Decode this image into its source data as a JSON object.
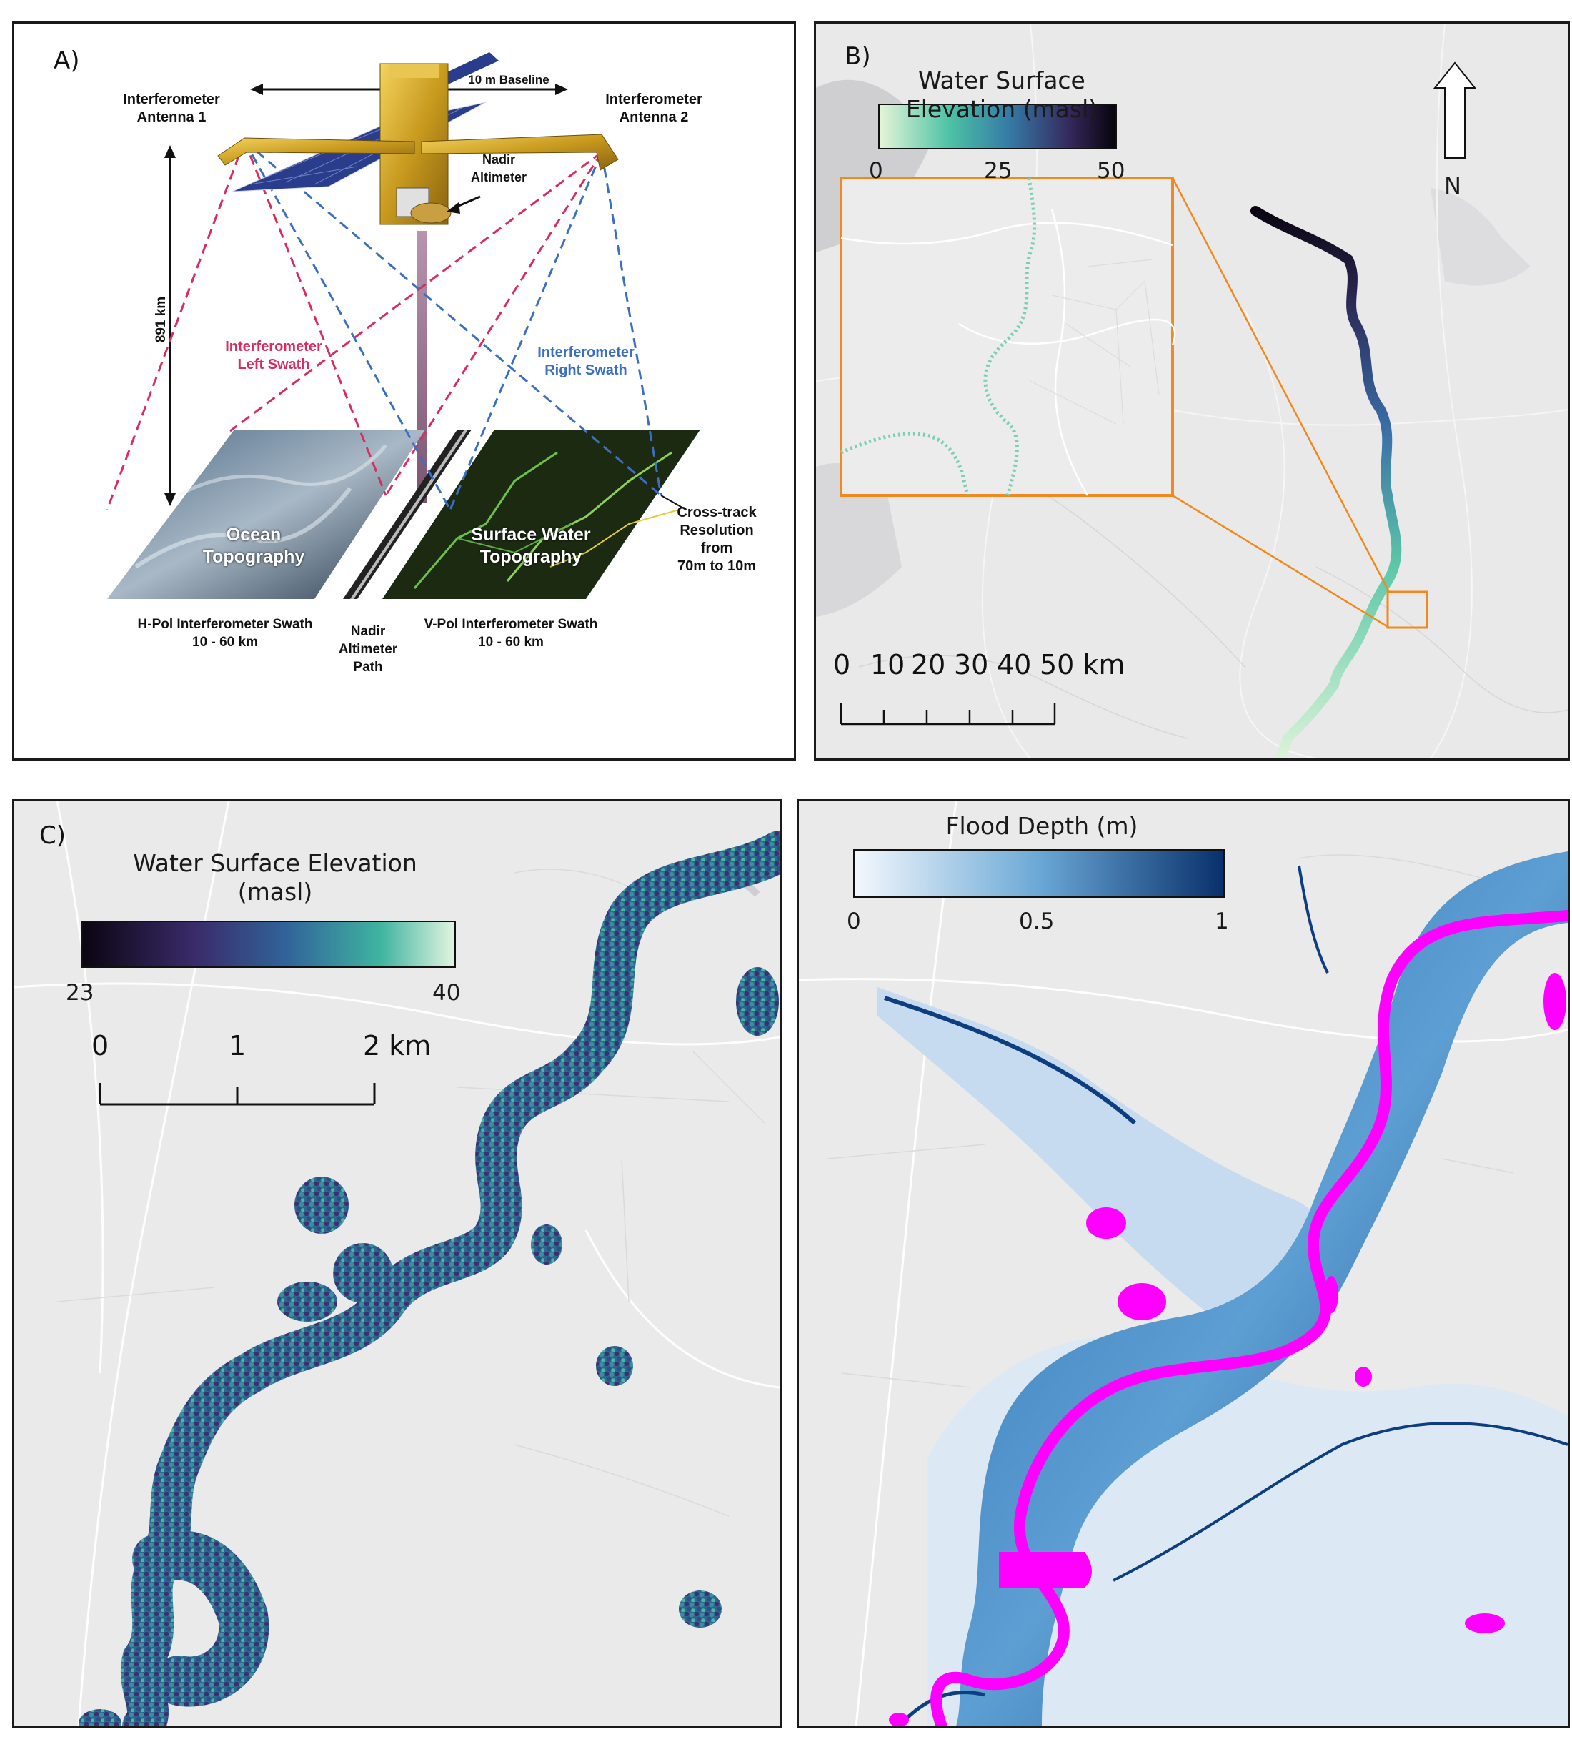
{
  "panel_a": {
    "label": "A)",
    "baseline": "10 m Baseline",
    "antenna1": [
      "Interferometer",
      "Antenna 1"
    ],
    "antenna2": [
      "Interferometer",
      "Antenna 2"
    ],
    "nadir_altimeter": [
      "Nadir",
      "Altimeter"
    ],
    "altitude": "891 km",
    "left_swath": [
      "Interferometer",
      "Left Swath"
    ],
    "right_swath": [
      "Interferometer",
      "Right Swath"
    ],
    "ocean": [
      "Ocean",
      "Topography"
    ],
    "surface_water": [
      "Surface Water",
      "Topography"
    ],
    "cross_track": [
      "Cross-track",
      "Resolution",
      "from",
      "70m to 10m"
    ],
    "hpol": [
      "H-Pol Interferometer Swath",
      "10 - 60 km"
    ],
    "nadir_path": [
      "Nadir",
      "Altimeter",
      "Path"
    ],
    "vpol": [
      "V-Pol Interferometer Swath",
      "10 - 60 km"
    ],
    "colors": {
      "left_swath": "#d92d5f",
      "right_swath": "#3b6fc4"
    }
  },
  "panel_b": {
    "label": "B)",
    "legend_title": "Water Surface Elevation (masl)",
    "ticks": [
      "0",
      "25",
      "50"
    ],
    "north": "N",
    "scale_labels": [
      "0",
      "10",
      "20",
      "30",
      "40",
      "50 km"
    ],
    "colors": {
      "inset_box": "#f08a1e"
    }
  },
  "panel_c": {
    "label": "C)",
    "legend_title": [
      "Water Surface Elevation",
      "(masl)"
    ],
    "ticks": [
      "23",
      "40"
    ],
    "scale_labels": [
      "0",
      "1",
      "2 km"
    ]
  },
  "panel_d": {
    "legend_title": "Flood Depth (m)",
    "ticks": [
      "0",
      "0.5",
      "1"
    ],
    "colors": {
      "river": "#ff00ff",
      "deep": "#08306b",
      "shallow": "#deebf7"
    }
  }
}
